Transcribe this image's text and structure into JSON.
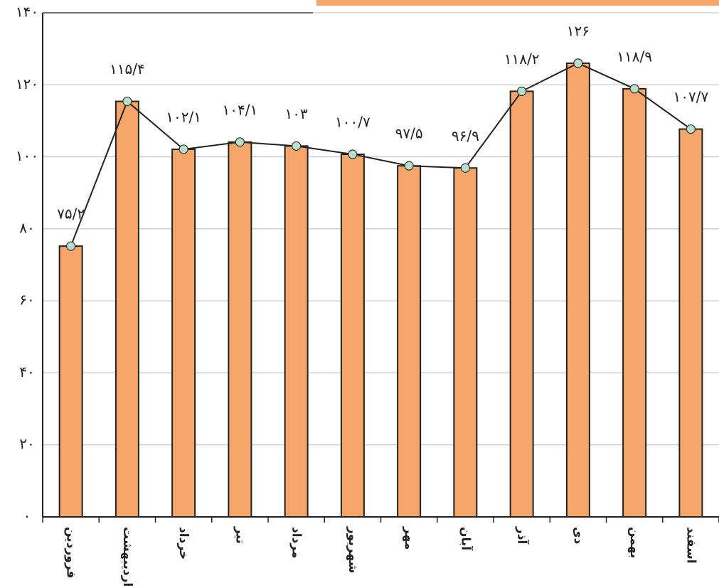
{
  "chart_data": {
    "type": "bar",
    "categories": [
      "فروردین",
      "اردیبهشت",
      "خرداد",
      "تیر",
      "مرداد",
      "شهریور",
      "مهر",
      "آبان",
      "آذر",
      "دی",
      "بهمن",
      "اسفند"
    ],
    "values": [
      75.2,
      115.4,
      102.1,
      104.1,
      103,
      100.7,
      97.5,
      96.9,
      118.2,
      126,
      118.9,
      107.7
    ],
    "value_labels": [
      "۷۵/۲",
      "۱۱۵/۴",
      "۱۰۲/۱",
      "۱۰۴/۱",
      "۱۰۳",
      "۱۰۰/۷",
      "۹۷/۵",
      "۹۶/۹",
      "۱۱۸/۲",
      "۱۲۶",
      "۱۱۸/۹",
      "۱۰۷/۷"
    ],
    "color": "#f7a66b",
    "line": true,
    "line_color": "#222222",
    "marker_color": "#b9dfcc",
    "ylim": [
      0,
      140
    ],
    "yticks": [
      {
        "value": 0,
        "label": "۰"
      },
      {
        "value": 20,
        "label": "۲۰"
      },
      {
        "value": 40,
        "label": "۴۰"
      },
      {
        "value": 60,
        "label": "۶۰"
      },
      {
        "value": 80,
        "label": "۸۰"
      },
      {
        "value": 100,
        "label": "۱۰۰"
      },
      {
        "value": 120,
        "label": "۱۲۰"
      },
      {
        "value": 140,
        "label": "۱۴۰"
      }
    ],
    "grid": true
  }
}
